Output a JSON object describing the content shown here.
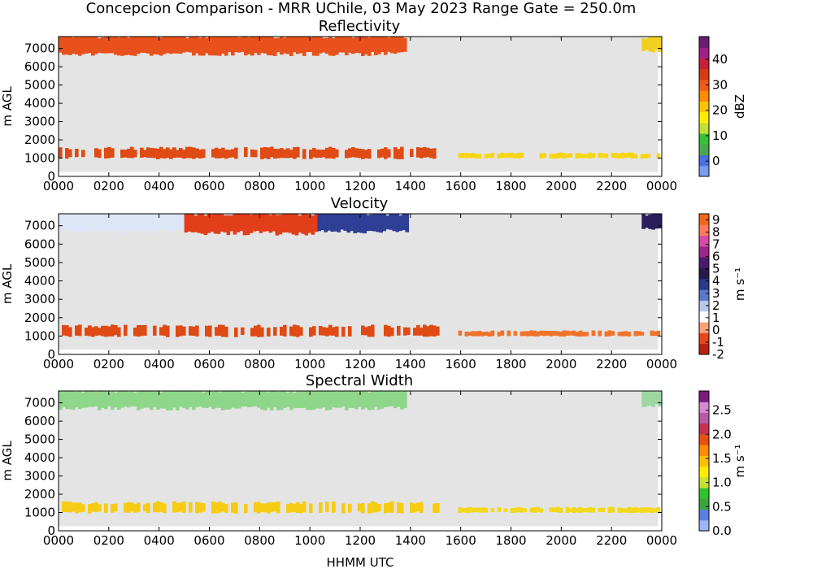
{
  "figure": {
    "suptitle": "Concepcion Comparison - MRR UChile, 03 May 2023 Range Gate = 250.0m",
    "xlabel": "HHMM UTC"
  },
  "chart_data": [
    {
      "type": "heatmap",
      "title": "Reflectivity",
      "xlabel": "",
      "ylabel": "m AGL",
      "x_tick_labels": [
        "0000",
        "0200",
        "0400",
        "0600",
        "0800",
        "1000",
        "1200",
        "1400",
        "1600",
        "1800",
        "2000",
        "2200",
        "0000"
      ],
      "xlim_hours": [
        0,
        24
      ],
      "y_ticks": [
        0,
        1000,
        2000,
        3000,
        4000,
        5000,
        6000,
        7000
      ],
      "ylim": [
        0,
        7650
      ],
      "colorbar": {
        "label": "dBZ",
        "min": -6,
        "max": 49,
        "ticks": [
          0,
          10,
          20,
          30,
          40
        ],
        "tick_labels": [
          "0",
          "10",
          "20",
          "30",
          "40"
        ],
        "colors": [
          "#7a9cf5",
          "#4a6ee0",
          "#49a84f",
          "#35c235",
          "#c2e030",
          "#ffee00",
          "#ffc400",
          "#ff8a00",
          "#f05a1a",
          "#d63a10",
          "#c81e38",
          "#a0208a",
          "#6a1c70"
        ]
      },
      "background": "#e4e4e4",
      "regions": [
        {
          "name": "upper layer",
          "t0": 0.0,
          "t1": 13.8,
          "h0": 6700,
          "h1": 7650,
          "color": "#e8501c"
        },
        {
          "name": "upper layer late",
          "t0": 23.2,
          "t1": 24.0,
          "h0": 6850,
          "h1": 7600,
          "color": "#f2d020"
        },
        {
          "name": "low layer",
          "t0": 0.0,
          "t1": 15.1,
          "h0": 1000,
          "h1": 1500,
          "color": "#e04a14"
        },
        {
          "name": "low layer late",
          "t0": 15.9,
          "t1": 24.0,
          "h0": 1000,
          "h1": 1250,
          "color": "#f6d612"
        }
      ]
    },
    {
      "type": "heatmap",
      "title": "Velocity",
      "xlabel": "",
      "ylabel": "m s⁻¹",
      "ylabel_left": "m AGL",
      "x_tick_labels": [
        "0000",
        "0200",
        "0400",
        "0600",
        "0800",
        "1000",
        "1200",
        "1400",
        "1600",
        "1800",
        "2000",
        "2200",
        "0000"
      ],
      "xlim_hours": [
        0,
        24
      ],
      "y_ticks": [
        0,
        1000,
        2000,
        3000,
        4000,
        5000,
        6000,
        7000
      ],
      "ylim": [
        0,
        7650
      ],
      "colorbar": {
        "label": "m s⁻¹",
        "min": -2,
        "max": 9.5,
        "ticks": [
          -2,
          -1,
          0,
          1,
          2,
          3,
          4,
          5,
          6,
          7,
          8,
          9
        ],
        "tick_labels": [
          "-2",
          "-1",
          "0",
          "1",
          "2",
          "3",
          "4",
          "5",
          "6",
          "7",
          "8",
          "9"
        ],
        "colors": [
          "#b82010",
          "#e8461a",
          "#f7a07a",
          "#ffffff",
          "#b8c8ea",
          "#5a78c8",
          "#2a3a8a",
          "#241a4e",
          "#4a1a6a",
          "#a0248a",
          "#d94aa6",
          "#ff7a5a",
          "#f5661a"
        ]
      },
      "background": "#e4e4e4",
      "regions": [
        {
          "name": "upper layer early",
          "t0": 0.0,
          "t1": 5.0,
          "h0": 6700,
          "h1": 7650,
          "color": "#dde6f6"
        },
        {
          "name": "upper layer mid",
          "t0": 5.0,
          "t1": 10.3,
          "h0": 6600,
          "h1": 7650,
          "color": "#e23e1a"
        },
        {
          "name": "upper layer late",
          "t0": 10.3,
          "t1": 13.8,
          "h0": 6700,
          "h1": 7650,
          "color": "#2f3f96"
        },
        {
          "name": "upper layer end",
          "t0": 23.2,
          "t1": 24.0,
          "h0": 6800,
          "h1": 7600,
          "color": "#2a1f5a"
        },
        {
          "name": "low layer",
          "t0": 0.0,
          "t1": 15.1,
          "h0": 1000,
          "h1": 1500,
          "color": "#e04a14"
        },
        {
          "name": "low layer late",
          "t0": 15.9,
          "t1": 24.0,
          "h0": 1000,
          "h1": 1250,
          "color": "#f0732a"
        }
      ]
    },
    {
      "type": "heatmap",
      "title": "Spectral Width",
      "xlabel": "HHMM UTC",
      "ylabel": "m AGL",
      "x_tick_labels": [
        "0000",
        "0200",
        "0400",
        "0600",
        "0800",
        "1000",
        "1200",
        "1400",
        "1600",
        "1800",
        "2000",
        "2200",
        "0000"
      ],
      "xlim_hours": [
        0,
        24
      ],
      "y_ticks": [
        0,
        1000,
        2000,
        3000,
        4000,
        5000,
        6000,
        7000
      ],
      "ylim": [
        0,
        7650
      ],
      "colorbar": {
        "label": "m s⁻¹",
        "min": 0,
        "max": 2.9,
        "ticks": [
          0.0,
          0.5,
          1.0,
          1.5,
          2.0,
          2.5
        ],
        "tick_labels": [
          "0.0",
          "0.5",
          "1.0",
          "1.5",
          "2.0",
          "2.5"
        ],
        "colors": [
          "#9ab6f5",
          "#5a80e6",
          "#3aa63a",
          "#2ec42e",
          "#c8e030",
          "#ffee00",
          "#ffbe00",
          "#ff8c00",
          "#e85010",
          "#c83050",
          "#b85aa8",
          "#d68ad0",
          "#7a1c78"
        ]
      },
      "background": "#e4e4e4",
      "regions": [
        {
          "name": "upper layer",
          "t0": 0.0,
          "t1": 13.8,
          "h0": 6700,
          "h1": 7650,
          "color": "#8ed68a"
        },
        {
          "name": "upper layer end",
          "t0": 23.2,
          "t1": 24.0,
          "h0": 6850,
          "h1": 7600,
          "color": "#9cd6a0"
        },
        {
          "name": "low layer",
          "t0": 0.0,
          "t1": 15.1,
          "h0": 1000,
          "h1": 1500,
          "color": "#f6cc14"
        },
        {
          "name": "low layer late",
          "t0": 15.9,
          "t1": 24.0,
          "h0": 1000,
          "h1": 1250,
          "color": "#f2d81a"
        }
      ]
    }
  ]
}
